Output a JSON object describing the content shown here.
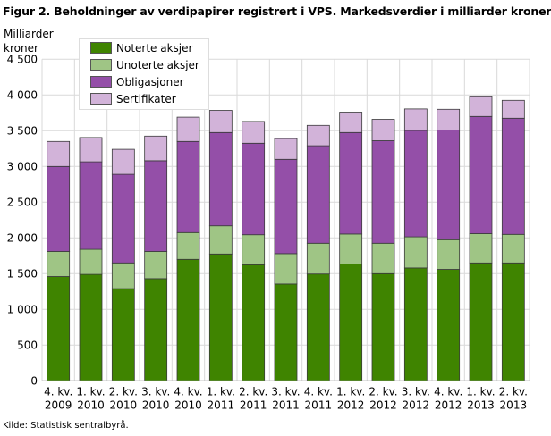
{
  "title": "Figur 2. Beholdninger av verdipapirer registrert i VPS. Markedsverdier i milliarder kroner",
  "source": "Kilde: Statistisk sentralbyrå.",
  "chart_data": {
    "type": "bar",
    "stacked": true,
    "title": "Figur 2. Beholdninger av verdipapirer registrert i VPS. Markedsverdier i milliarder kroner",
    "ylabel": "Milliarder kroner",
    "xlabel": "",
    "ylim": [
      0,
      4500
    ],
    "yticks": [
      0,
      500,
      1000,
      1500,
      2000,
      2500,
      3000,
      3500,
      4000,
      4500
    ],
    "ytick_labels": [
      "0",
      "500",
      "1 000",
      "1 500",
      "2 000",
      "2 500",
      "3 000",
      "3 500",
      "4 000",
      "4 500"
    ],
    "grid": true,
    "legend_position": "top-left",
    "categories": [
      [
        "4. kv.",
        "2009"
      ],
      [
        "1. kv.",
        "2010"
      ],
      [
        "2. kv.",
        "2010"
      ],
      [
        "3. kv.",
        "2010"
      ],
      [
        "4. kv.",
        "2010"
      ],
      [
        "1. kv.",
        "2011"
      ],
      [
        "2. kv.",
        "2011"
      ],
      [
        "3. kv.",
        "2011"
      ],
      [
        "4. kv.",
        "2011"
      ],
      [
        "1. kv.",
        "2012"
      ],
      [
        "2. kv.",
        "2012"
      ],
      [
        "3. kv.",
        "2012"
      ],
      [
        "4. kv.",
        "2012"
      ],
      [
        "1. kv.",
        "2013"
      ],
      [
        "2. kv.",
        "2013"
      ]
    ],
    "series": [
      {
        "name": "Noterte aksjer",
        "color": "#3f8400",
        "values": [
          1460,
          1490,
          1290,
          1430,
          1700,
          1775,
          1625,
          1355,
          1495,
          1635,
          1500,
          1580,
          1560,
          1650,
          1650
        ]
      },
      {
        "name": "Unoterte aksjer",
        "color": "#9fc585",
        "values": [
          350,
          350,
          360,
          380,
          375,
          395,
          420,
          425,
          430,
          420,
          425,
          435,
          415,
          410,
          400
        ]
      },
      {
        "name": "Obligasjoner",
        "color": "#944fa8",
        "values": [
          1190,
          1225,
          1240,
          1270,
          1275,
          1305,
          1280,
          1320,
          1365,
          1420,
          1435,
          1490,
          1535,
          1640,
          1625
        ]
      },
      {
        "name": "Sertifikater",
        "color": "#d2b3d9",
        "values": [
          350,
          340,
          350,
          345,
          340,
          310,
          305,
          290,
          285,
          285,
          300,
          300,
          290,
          275,
          250
        ]
      }
    ]
  }
}
